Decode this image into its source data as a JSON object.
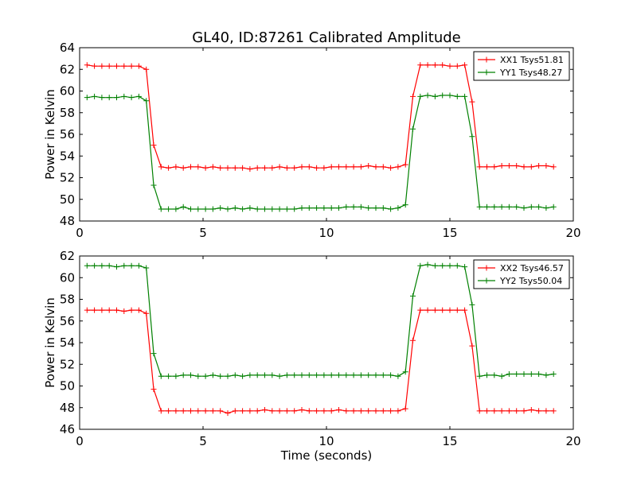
{
  "title": "GL40, ID:87261 Calibrated Amplitude",
  "xlabel": "Time (seconds)",
  "chart_data": [
    {
      "type": "line",
      "title": "GL40, ID:87261 Calibrated Amplitude",
      "xlabel": "",
      "ylabel": "Power in Kelvin",
      "xlim": [
        0,
        20
      ],
      "ylim": [
        48,
        64
      ],
      "xticks": [
        0,
        5,
        10,
        15,
        20
      ],
      "yticks": [
        48,
        50,
        52,
        54,
        56,
        58,
        60,
        62,
        64
      ],
      "legend_position": "top-right",
      "x": [
        0.3,
        0.6,
        0.9,
        1.2,
        1.5,
        1.8,
        2.1,
        2.4,
        2.7,
        3.0,
        3.3,
        3.6,
        3.9,
        4.2,
        4.5,
        4.8,
        5.1,
        5.4,
        5.7,
        6.0,
        6.3,
        6.6,
        6.9,
        7.2,
        7.5,
        7.8,
        8.1,
        8.4,
        8.7,
        9.0,
        9.3,
        9.6,
        9.9,
        10.2,
        10.5,
        10.8,
        11.1,
        11.4,
        11.7,
        12.0,
        12.3,
        12.6,
        12.9,
        13.2,
        13.5,
        13.8,
        14.1,
        14.4,
        14.7,
        15.0,
        15.3,
        15.6,
        15.9,
        16.2,
        16.5,
        16.8,
        17.1,
        17.4,
        17.7,
        18.0,
        18.3,
        18.6,
        18.9,
        19.2
      ],
      "series": [
        {
          "name": "XX1 Tsys51.81",
          "color": "#ff0000",
          "values": [
            62.4,
            62.3,
            62.3,
            62.3,
            62.3,
            62.3,
            62.3,
            62.3,
            62.0,
            55.0,
            53.0,
            52.9,
            53.0,
            52.9,
            53.0,
            53.0,
            52.9,
            53.0,
            52.9,
            52.9,
            52.9,
            52.9,
            52.8,
            52.9,
            52.9,
            52.9,
            53.0,
            52.9,
            52.9,
            53.0,
            53.0,
            52.9,
            52.9,
            53.0,
            53.0,
            53.0,
            53.0,
            53.0,
            53.1,
            53.0,
            53.0,
            52.9,
            53.0,
            53.2,
            59.5,
            62.4,
            62.4,
            62.4,
            62.4,
            62.3,
            62.3,
            62.4,
            59.0,
            53.0,
            53.0,
            53.0,
            53.1,
            53.1,
            53.1,
            53.0,
            53.0,
            53.1,
            53.1,
            53.0
          ]
        },
        {
          "name": "YY1 Tsys48.27",
          "color": "#008000",
          "values": [
            59.4,
            59.5,
            59.4,
            59.4,
            59.4,
            59.5,
            59.4,
            59.5,
            59.1,
            51.3,
            49.1,
            49.1,
            49.1,
            49.3,
            49.1,
            49.1,
            49.1,
            49.1,
            49.2,
            49.1,
            49.2,
            49.1,
            49.2,
            49.1,
            49.1,
            49.1,
            49.1,
            49.1,
            49.1,
            49.2,
            49.2,
            49.2,
            49.2,
            49.2,
            49.2,
            49.3,
            49.3,
            49.3,
            49.2,
            49.2,
            49.2,
            49.1,
            49.2,
            49.5,
            56.5,
            59.5,
            59.6,
            59.5,
            59.6,
            59.6,
            59.5,
            59.5,
            55.8,
            49.3,
            49.3,
            49.3,
            49.3,
            49.3,
            49.3,
            49.2,
            49.3,
            49.3,
            49.2,
            49.3
          ]
        }
      ]
    },
    {
      "type": "line",
      "title": "",
      "xlabel": "Time (seconds)",
      "ylabel": "Power in Kelvin",
      "xlim": [
        0,
        20
      ],
      "ylim": [
        46,
        62
      ],
      "xticks": [
        0,
        5,
        10,
        15,
        20
      ],
      "yticks": [
        46,
        48,
        50,
        52,
        54,
        56,
        58,
        60,
        62
      ],
      "legend_position": "top-right",
      "x": [
        0.3,
        0.6,
        0.9,
        1.2,
        1.5,
        1.8,
        2.1,
        2.4,
        2.7,
        3.0,
        3.3,
        3.6,
        3.9,
        4.2,
        4.5,
        4.8,
        5.1,
        5.4,
        5.7,
        6.0,
        6.3,
        6.6,
        6.9,
        7.2,
        7.5,
        7.8,
        8.1,
        8.4,
        8.7,
        9.0,
        9.3,
        9.6,
        9.9,
        10.2,
        10.5,
        10.8,
        11.1,
        11.4,
        11.7,
        12.0,
        12.3,
        12.6,
        12.9,
        13.2,
        13.5,
        13.8,
        14.1,
        14.4,
        14.7,
        15.0,
        15.3,
        15.6,
        15.9,
        16.2,
        16.5,
        16.8,
        17.1,
        17.4,
        17.7,
        18.0,
        18.3,
        18.6,
        18.9,
        19.2
      ],
      "series": [
        {
          "name": "XX2 Tsys46.57",
          "color": "#ff0000",
          "values": [
            57.0,
            57.0,
            57.0,
            57.0,
            57.0,
            56.9,
            57.0,
            57.0,
            56.7,
            49.7,
            47.7,
            47.7,
            47.7,
            47.7,
            47.7,
            47.7,
            47.7,
            47.7,
            47.7,
            47.5,
            47.7,
            47.7,
            47.7,
            47.7,
            47.8,
            47.7,
            47.7,
            47.7,
            47.7,
            47.8,
            47.7,
            47.7,
            47.7,
            47.7,
            47.8,
            47.7,
            47.7,
            47.7,
            47.7,
            47.7,
            47.7,
            47.7,
            47.7,
            47.9,
            54.2,
            57.0,
            57.0,
            57.0,
            57.0,
            57.0,
            57.0,
            57.0,
            53.7,
            47.7,
            47.7,
            47.7,
            47.7,
            47.7,
            47.7,
            47.7,
            47.8,
            47.7,
            47.7,
            47.7
          ]
        },
        {
          "name": "YY2 Tsys50.04",
          "color": "#008000",
          "values": [
            61.1,
            61.1,
            61.1,
            61.1,
            61.0,
            61.1,
            61.1,
            61.1,
            60.9,
            53.0,
            50.9,
            50.9,
            50.9,
            51.0,
            51.0,
            50.9,
            50.9,
            51.0,
            50.9,
            50.9,
            51.0,
            50.9,
            51.0,
            51.0,
            51.0,
            51.0,
            50.9,
            51.0,
            51.0,
            51.0,
            51.0,
            51.0,
            51.0,
            51.0,
            51.0,
            51.0,
            51.0,
            51.0,
            51.0,
            51.0,
            51.0,
            51.0,
            50.9,
            51.3,
            58.3,
            61.1,
            61.2,
            61.1,
            61.1,
            61.1,
            61.1,
            61.0,
            57.5,
            50.9,
            51.0,
            51.0,
            50.9,
            51.1,
            51.1,
            51.1,
            51.1,
            51.1,
            51.0,
            51.1
          ]
        }
      ]
    }
  ]
}
